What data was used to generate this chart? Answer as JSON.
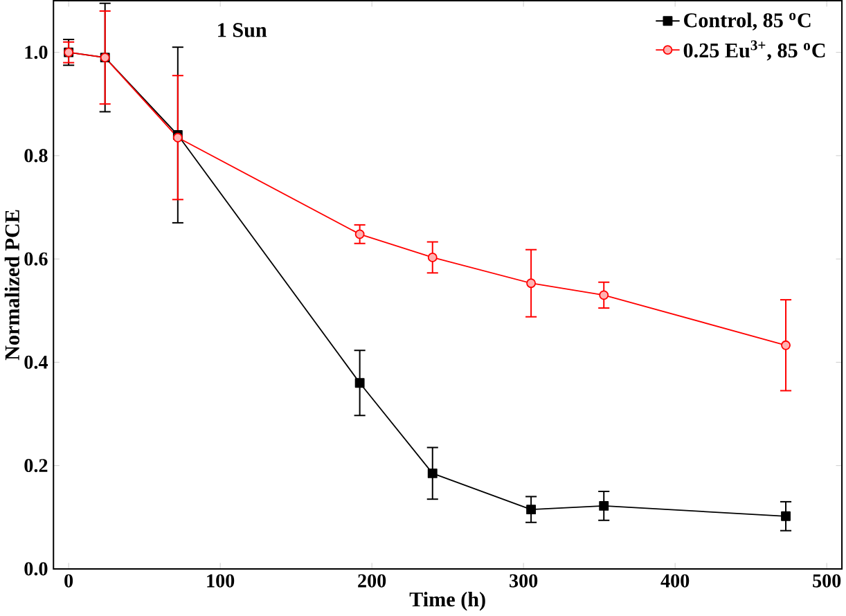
{
  "chart_data": {
    "type": "line",
    "xlabel": "Time (h)",
    "ylabel": "Normalized PCE",
    "annotations": [
      "1 Sun"
    ],
    "x": [
      0,
      24,
      72,
      192,
      240,
      305,
      353,
      473
    ],
    "series": [
      {
        "name": "Control, 85 $^{o}$C",
        "color": "#000000",
        "marker": "square",
        "values": [
          1.0,
          0.99,
          0.84,
          0.36,
          0.185,
          0.115,
          0.122,
          0.102
        ],
        "errors": [
          0.025,
          0.105,
          0.17,
          0.063,
          0.05,
          0.025,
          0.028,
          0.028
        ]
      },
      {
        "name": "0.25 Eu$^{3+}$, 85 $^{o}$C",
        "color": "#ff0000",
        "marker": "circle",
        "values": [
          1.0,
          0.99,
          0.835,
          0.648,
          0.603,
          0.553,
          0.53,
          0.433
        ],
        "errors": [
          0.02,
          0.09,
          0.12,
          0.018,
          0.03,
          0.065,
          0.025,
          0.088
        ]
      }
    ],
    "xlim": [
      -10,
      510
    ],
    "ylim": [
      0,
      1.1
    ],
    "xticks": [
      0,
      100,
      200,
      300,
      400,
      500
    ],
    "yticks": [
      {
        "value": 0,
        "label": "0.0"
      },
      0.2,
      0.4,
      0.6,
      0.8,
      {
        "value": 1,
        "label": "1.0"
      }
    ],
    "legend": "top right",
    "grid": false,
    "line_style": "solid"
  }
}
